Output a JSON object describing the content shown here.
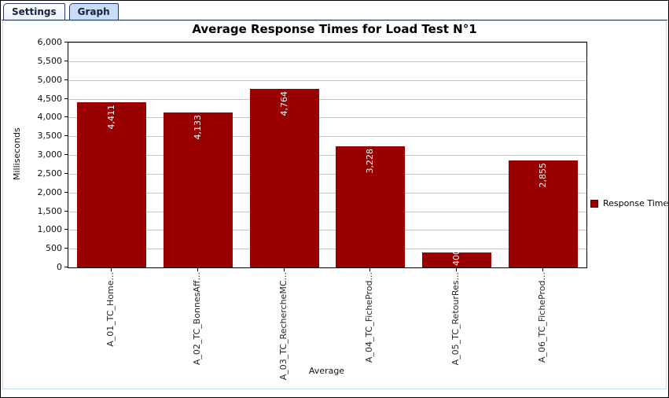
{
  "tabs": {
    "items": [
      {
        "label": "Settings",
        "selected": false
      },
      {
        "label": "Graph",
        "selected": true
      }
    ],
    "selected_bg": "#c8ddf4",
    "border_color": "#22366b"
  },
  "chart_data": {
    "type": "bar",
    "title": "Average Response Times for Load Test N°1",
    "xlabel": "Average",
    "ylabel": "Milliseconds",
    "ylim": [
      0,
      6000
    ],
    "ytick_step": 500,
    "yticks": [
      "0",
      "500",
      "1,000",
      "1,500",
      "2,000",
      "2,500",
      "3,000",
      "3,500",
      "4,000",
      "4,500",
      "5,000",
      "5,500",
      "6,000"
    ],
    "categories": [
      "A_01_TC_Home...",
      "A_02_TC_BonnesAff...",
      "A_03_TC_RechercheMC...",
      "A_04_TC_FicheProd...",
      "A_05_TC_RetourRes...",
      "A_06_TC_FicheProd..."
    ],
    "series": [
      {
        "name": "Response Time",
        "color": "#990000",
        "values": [
          4411,
          4133,
          4764,
          3228,
          400,
          2855
        ],
        "labels": [
          "4,411",
          "4,133",
          "4,764",
          "3,228",
          "400",
          "2,855"
        ]
      }
    ],
    "grid": true,
    "grid_color": "#c6c6c6",
    "plot_border_color": "#000000",
    "legend_position": "right"
  }
}
